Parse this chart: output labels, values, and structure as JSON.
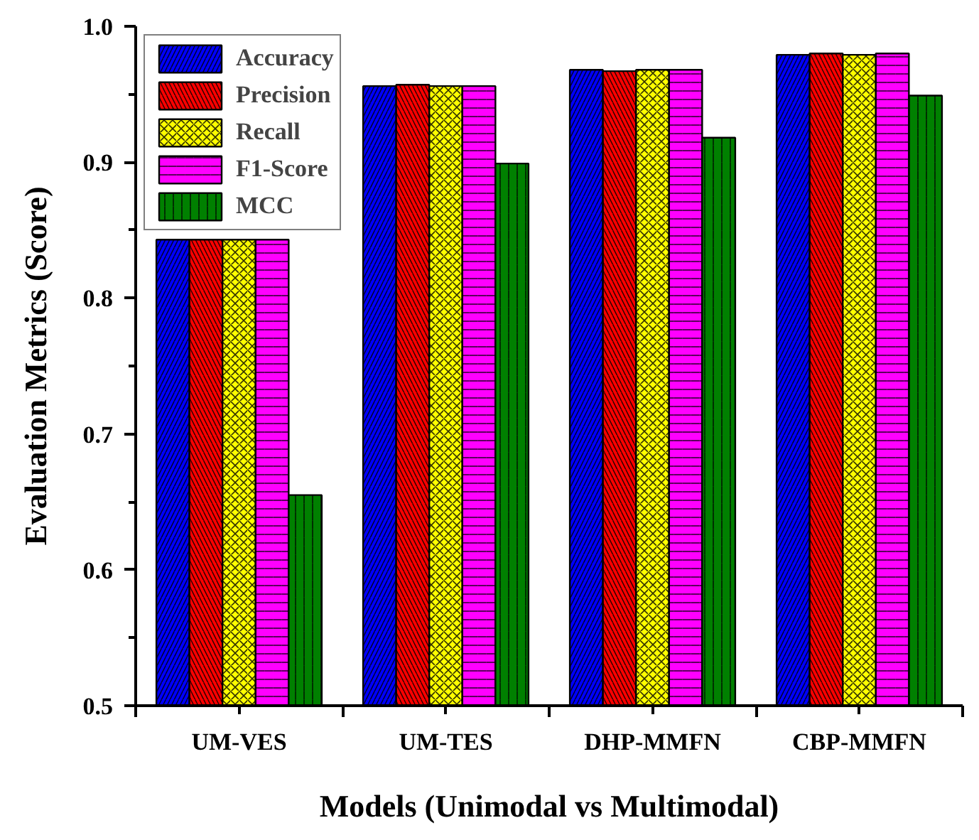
{
  "chart_data": {
    "type": "bar",
    "xlabel": "Models (Unimodal vs Multimodal)",
    "ylabel": "Evaluation Metrics (Score)",
    "categories": [
      "UM-VES",
      "UM-TES",
      "DHP-MMFN",
      "CBP-MMFN"
    ],
    "series": [
      {
        "name": "Accuracy",
        "color": "#0000ff",
        "values": [
          0.843,
          0.956,
          0.968,
          0.979
        ]
      },
      {
        "name": "Precision",
        "color": "#ff0000",
        "values": [
          0.843,
          0.957,
          0.967,
          0.98
        ]
      },
      {
        "name": "Recall",
        "color": "#ffff00",
        "values": [
          0.843,
          0.956,
          0.968,
          0.979
        ]
      },
      {
        "name": "F1-Score",
        "color": "#ff00ff",
        "values": [
          0.843,
          0.956,
          0.968,
          0.98
        ]
      },
      {
        "name": "MCC",
        "color": "#008000",
        "values": [
          0.655,
          0.899,
          0.918,
          0.949
        ]
      }
    ],
    "ylim": [
      0.5,
      1.0
    ],
    "yticks": [
      0.5,
      0.6,
      0.7,
      0.8,
      0.9,
      {
        "value": 1,
        "label": "1.0"
      }
    ],
    "grid": false,
    "legend": "top left"
  }
}
